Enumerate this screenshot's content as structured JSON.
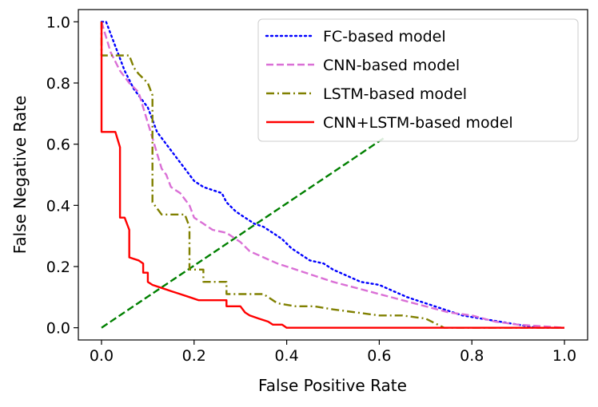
{
  "chart_data": {
    "type": "line",
    "title": "",
    "xlabel": "False Positive Rate",
    "ylabel": "False Negative Rate",
    "xlim": [
      -0.05,
      1.05
    ],
    "ylim": [
      -0.04,
      1.04
    ],
    "xticks": [
      0.0,
      0.2,
      0.4,
      0.6,
      0.8,
      1.0
    ],
    "yticks": [
      0.0,
      0.2,
      0.4,
      0.6,
      0.8,
      1.0
    ],
    "xtick_labels": [
      "0.0",
      "0.2",
      "0.4",
      "0.6",
      "0.8",
      "1.0"
    ],
    "ytick_labels": [
      "0.0",
      "0.2",
      "0.4",
      "0.6",
      "0.8",
      "1.0"
    ],
    "grid": false,
    "legend_position": "top-right",
    "series": [
      {
        "name": "FC-based model",
        "color": "#0000ff",
        "dash": "dotted",
        "x": [
          0.0,
          0.01,
          0.02,
          0.03,
          0.04,
          0.05,
          0.06,
          0.07,
          0.08,
          0.09,
          0.1,
          0.11,
          0.12,
          0.13,
          0.14,
          0.16,
          0.18,
          0.2,
          0.22,
          0.24,
          0.26,
          0.27,
          0.29,
          0.31,
          0.33,
          0.35,
          0.37,
          0.39,
          0.41,
          0.43,
          0.45,
          0.48,
          0.5,
          0.53,
          0.56,
          0.6,
          0.63,
          0.66,
          0.7,
          0.74,
          0.78,
          0.82,
          0.86,
          0.9,
          0.94,
          1.0
        ],
        "y": [
          1.0,
          1.0,
          0.96,
          0.92,
          0.88,
          0.84,
          0.81,
          0.78,
          0.76,
          0.74,
          0.72,
          0.68,
          0.64,
          0.62,
          0.6,
          0.56,
          0.52,
          0.48,
          0.46,
          0.45,
          0.44,
          0.41,
          0.38,
          0.36,
          0.34,
          0.33,
          0.31,
          0.29,
          0.26,
          0.24,
          0.22,
          0.21,
          0.19,
          0.17,
          0.15,
          0.14,
          0.12,
          0.1,
          0.08,
          0.06,
          0.04,
          0.03,
          0.02,
          0.01,
          0.0,
          0.0
        ]
      },
      {
        "name": "CNN-based model",
        "color": "#da70d6",
        "dash": "dashed",
        "x": [
          0.0,
          0.01,
          0.02,
          0.04,
          0.06,
          0.08,
          0.09,
          0.1,
          0.11,
          0.12,
          0.13,
          0.14,
          0.15,
          0.16,
          0.17,
          0.18,
          0.19,
          0.2,
          0.22,
          0.24,
          0.27,
          0.3,
          0.32,
          0.35,
          0.38,
          0.42,
          0.46,
          0.5,
          0.55,
          0.6,
          0.65,
          0.7,
          0.75,
          0.8,
          0.85,
          0.9,
          1.0
        ],
        "y": [
          1.0,
          0.95,
          0.9,
          0.84,
          0.8,
          0.77,
          0.72,
          0.67,
          0.62,
          0.57,
          0.52,
          0.5,
          0.46,
          0.45,
          0.44,
          0.42,
          0.4,
          0.36,
          0.34,
          0.32,
          0.31,
          0.28,
          0.25,
          0.23,
          0.21,
          0.19,
          0.17,
          0.15,
          0.13,
          0.11,
          0.09,
          0.07,
          0.05,
          0.04,
          0.02,
          0.01,
          0.0
        ]
      },
      {
        "name": "LSTM-based model",
        "color": "#808000",
        "dash": "dashdot",
        "x": [
          0.0,
          0.0,
          0.06,
          0.07,
          0.08,
          0.1,
          0.11,
          0.11,
          0.13,
          0.18,
          0.19,
          0.19,
          0.22,
          0.22,
          0.27,
          0.27,
          0.35,
          0.38,
          0.42,
          0.46,
          0.5,
          0.55,
          0.6,
          0.65,
          0.7,
          0.74,
          1.0
        ],
        "y": [
          1.0,
          0.89,
          0.89,
          0.85,
          0.83,
          0.8,
          0.76,
          0.41,
          0.37,
          0.37,
          0.33,
          0.19,
          0.19,
          0.15,
          0.15,
          0.11,
          0.11,
          0.08,
          0.07,
          0.07,
          0.06,
          0.05,
          0.04,
          0.04,
          0.03,
          0.0,
          0.0
        ]
      },
      {
        "name": "CNN+LSTM-based model",
        "color": "#ff0000",
        "dash": "solid",
        "x": [
          0.0,
          0.0,
          0.03,
          0.04,
          0.04,
          0.05,
          0.06,
          0.06,
          0.08,
          0.09,
          0.09,
          0.1,
          0.1,
          0.11,
          0.13,
          0.15,
          0.17,
          0.19,
          0.21,
          0.23,
          0.25,
          0.27,
          0.27,
          0.3,
          0.31,
          0.32,
          0.34,
          0.36,
          0.37,
          0.39,
          0.4,
          1.0
        ],
        "y": [
          1.0,
          0.64,
          0.64,
          0.59,
          0.36,
          0.36,
          0.32,
          0.23,
          0.22,
          0.21,
          0.18,
          0.18,
          0.15,
          0.14,
          0.13,
          0.12,
          0.11,
          0.1,
          0.09,
          0.09,
          0.09,
          0.09,
          0.07,
          0.07,
          0.05,
          0.04,
          0.03,
          0.02,
          0.01,
          0.01,
          0.0,
          0.0
        ]
      },
      {
        "name": "",
        "color": "#008000",
        "dash": "dashed",
        "x": [
          0.0,
          0.61
        ],
        "y": [
          0.0,
          0.62
        ]
      }
    ]
  }
}
